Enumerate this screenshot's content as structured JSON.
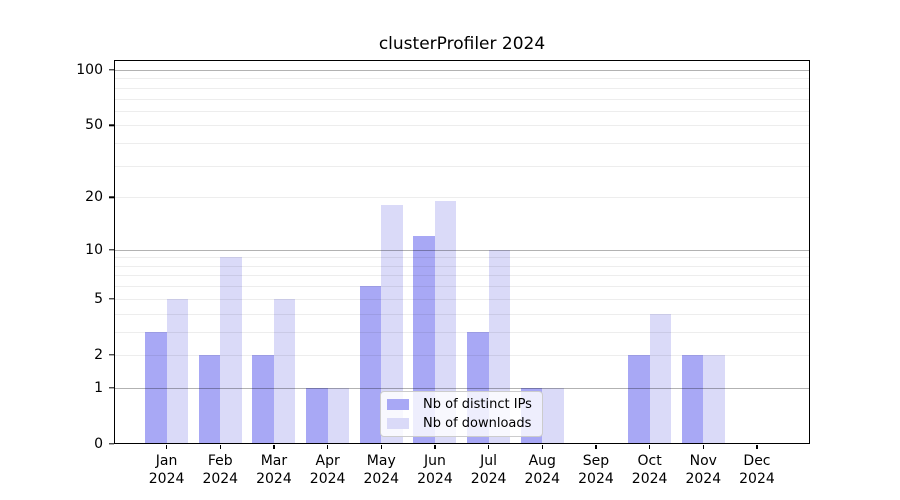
{
  "title": "clusterProfiler 2024",
  "chart_data": {
    "type": "bar",
    "title": "clusterProfiler 2024",
    "year": "2024",
    "categories": [
      {
        "month": "Jan",
        "year": "2024"
      },
      {
        "month": "Feb",
        "year": "2024"
      },
      {
        "month": "Mar",
        "year": "2024"
      },
      {
        "month": "Apr",
        "year": "2024"
      },
      {
        "month": "May",
        "year": "2024"
      },
      {
        "month": "Jun",
        "year": "2024"
      },
      {
        "month": "Jul",
        "year": "2024"
      },
      {
        "month": "Aug",
        "year": "2024"
      },
      {
        "month": "Sep",
        "year": "2024"
      },
      {
        "month": "Oct",
        "year": "2024"
      },
      {
        "month": "Nov",
        "year": "2024"
      },
      {
        "month": "Dec",
        "year": "2024"
      }
    ],
    "series": [
      {
        "name": "Nb of distinct IPs",
        "color": "#a8a8f5",
        "values": [
          3,
          2,
          2,
          1,
          6,
          12,
          3,
          1,
          0,
          2,
          2,
          0
        ]
      },
      {
        "name": "Nb of downloads",
        "color": "#dadaf8",
        "values": [
          5,
          9,
          5,
          1,
          18,
          19,
          10,
          1,
          0,
          4,
          2,
          0
        ]
      }
    ],
    "y_ticks": [
      0,
      1,
      2,
      5,
      10,
      20,
      50,
      100
    ],
    "y_scale": "log1p",
    "ylim": [
      0,
      113
    ],
    "grid": {
      "major": [
        1,
        10,
        100
      ],
      "minor": [
        2,
        3,
        4,
        5,
        6,
        7,
        8,
        9,
        20,
        30,
        40,
        50,
        60,
        70,
        80,
        90
      ]
    },
    "legend_position": "lower center",
    "axis_color": "#000000",
    "background_color": "#ffffff"
  }
}
